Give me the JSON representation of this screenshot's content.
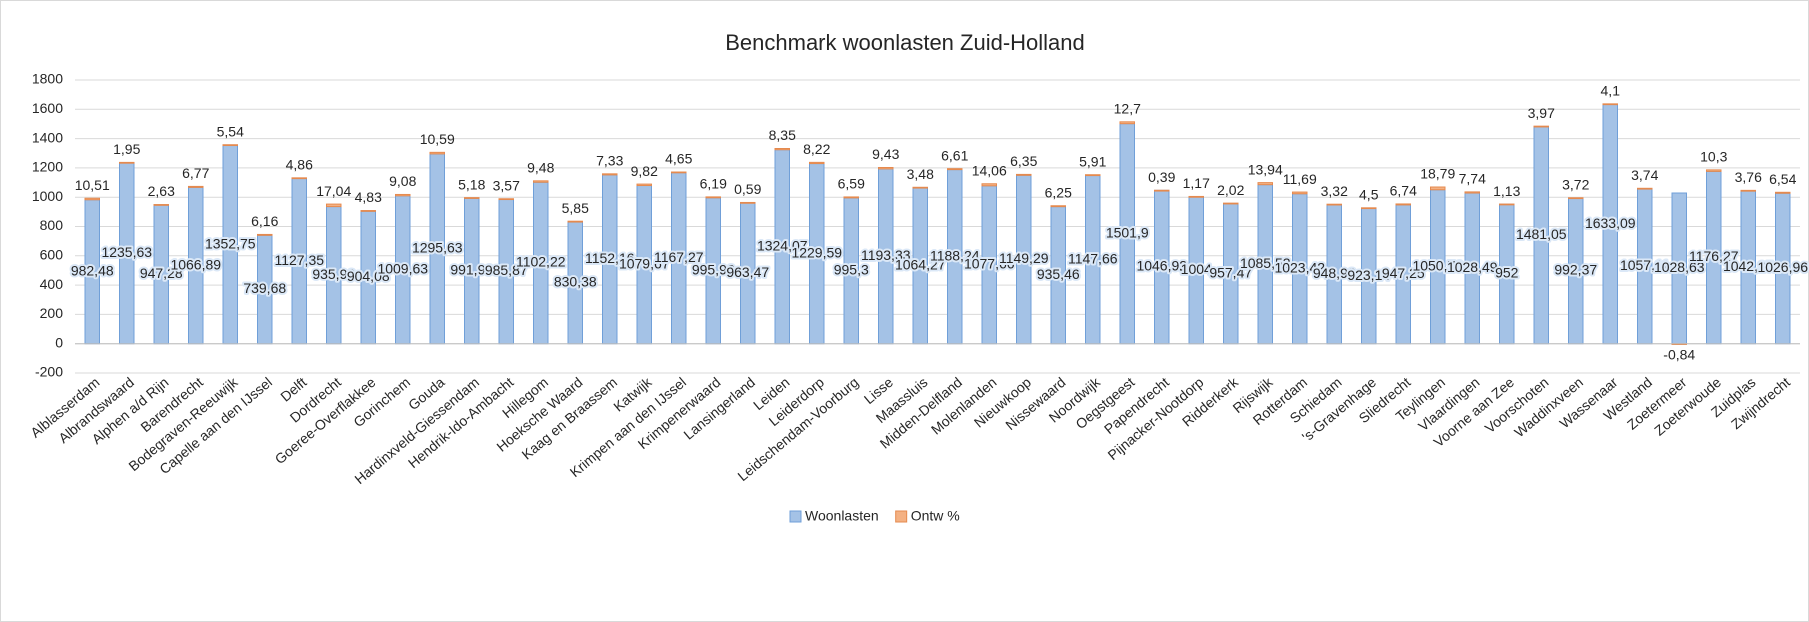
{
  "chart_data": {
    "type": "bar",
    "stacked": true,
    "title": "Benchmark woonlasten Zuid-Holland",
    "categories": [
      "Alblasserdam",
      "Albrandswaard",
      "Alphen a/d Rijn",
      "Barendrecht",
      "Bodegraven-Reeuwijk",
      "Capelle aan den IJssel",
      "Delft",
      "Dordrecht",
      "Goeree-Overflakkee",
      "Gorinchem",
      "Gouda",
      "Hardinxveld-Giessendam",
      "Hendrik-Ido-Ambacht",
      "Hillegom",
      "Hoeksche Waard",
      "Kaag en Braassem",
      "Katwijk",
      "Krimpen aan den IJssel",
      "Krimpenerwaard",
      "Lansingerland",
      "Leiden",
      "Leiderdorp",
      "Leidschendam-Voorburg",
      "Lisse",
      "Maassluis",
      "Midden-Delfland",
      "Molenlanden",
      "Nieuwkoop",
      "Nissewaard",
      "Noordwijk",
      "Oegstgeest",
      "Papendrecht",
      "Pijnacker-Nootdorp",
      "Ridderkerk",
      "Rijswijk",
      "Rotterdam",
      "Schiedam",
      "'s-Gravenhage",
      "Sliedrecht",
      "Teylingen",
      "Vlaardingen",
      "Voorne aan Zee",
      "Voorschoten",
      "Waddinxveen",
      "Wassenaar",
      "Westland",
      "Zoetermeer",
      "Zoeterwoude",
      "Zuidplas",
      "Zwijndrecht"
    ],
    "series": [
      {
        "name": "Woonlasten",
        "color": "#a4c2e6",
        "values": [
          982.48,
          1235.63,
          947.28,
          1066.89,
          1352.75,
          739.68,
          1127.35,
          935.96,
          904.08,
          1009.63,
          1295.63,
          991.98,
          985.87,
          1102.22,
          830.38,
          1152.16,
          1079.67,
          1167.27,
          995.96,
          963.47,
          1324.07,
          1229.59,
          995.3,
          1193.33,
          1064.27,
          1188.24,
          1077.66,
          1149.29,
          935.46,
          1147.66,
          1501.9,
          1046.92,
          1004,
          957.47,
          1085.53,
          1023.42,
          948.92,
          923.14,
          947.25,
          1050.76,
          1028.49,
          952,
          1481.05,
          992.37,
          1633.09,
          1057.11,
          1028.63,
          1176.27,
          1042.95,
          1026.96
        ],
        "value_labels": [
          "982,48",
          "1235,63",
          "947,28",
          "1066,89",
          "1352,75",
          "739,68",
          "1127,35",
          "935,96",
          "904,08",
          "1009,63",
          "1295,63",
          "991,98",
          "985,87",
          "1102,22",
          "830,38",
          "1152,16",
          "1079,67",
          "1167,27",
          "995,96",
          "963,47",
          "1324,07",
          "1229,59",
          "995,3",
          "1193,33",
          "1064,27",
          "1188,24",
          "1077,66",
          "1149,29",
          "935,46",
          "1147,66",
          "1501,9",
          "1046,92",
          "1004",
          "957,47",
          "1085,53",
          "1023,42",
          "948,92",
          "923,14",
          "947,25",
          "1050,76",
          "1028,49",
          "952",
          "1481,05",
          "992,37",
          "1633,09",
          "1057,11",
          "1028,63",
          "1176,27",
          "1042,95",
          "1026,96"
        ]
      },
      {
        "name": "Ontw %",
        "color": "#f4b183",
        "values": [
          10.51,
          1.95,
          2.63,
          6.77,
          5.54,
          6.16,
          4.86,
          17.04,
          4.83,
          9.08,
          10.59,
          5.18,
          3.57,
          9.48,
          5.85,
          7.33,
          9.82,
          4.65,
          6.19,
          0.59,
          8.35,
          8.22,
          6.59,
          9.43,
          3.48,
          6.61,
          14.06,
          6.35,
          6.25,
          5.91,
          12.7,
          0.39,
          1.17,
          2.02,
          13.94,
          11.69,
          3.32,
          4.5,
          6.74,
          18.79,
          7.74,
          1.13,
          3.97,
          3.72,
          4.1,
          3.74,
          -0.84,
          10.3,
          3.76,
          6.54
        ],
        "value_labels": [
          "10,51",
          "1,95",
          "2,63",
          "6,77",
          "5,54",
          "6,16",
          "4,86",
          "17,04",
          "4,83",
          "9,08",
          "10,59",
          "5,18",
          "3,57",
          "9,48",
          "5,85",
          "7,33",
          "9,82",
          "4,65",
          "6,19",
          "0,59",
          "8,35",
          "8,22",
          "6,59",
          "9,43",
          "3,48",
          "6,61",
          "14,06",
          "6,35",
          "6,25",
          "5,91",
          "12,7",
          "0,39",
          "1,17",
          "2,02",
          "13,94",
          "11,69",
          "3,32",
          "4,5",
          "6,74",
          "18,79",
          "7,74",
          "1,13",
          "3,97",
          "3,72",
          "4,1",
          "3,74",
          "-0,84",
          "10,3",
          "3,76",
          "6,54"
        ]
      }
    ],
    "ylim": [
      -200,
      1800
    ],
    "yticks": [
      -200,
      0,
      200,
      400,
      600,
      800,
      1000,
      1200,
      1400,
      1600,
      1800
    ],
    "grid": true,
    "legend": "bottom"
  }
}
